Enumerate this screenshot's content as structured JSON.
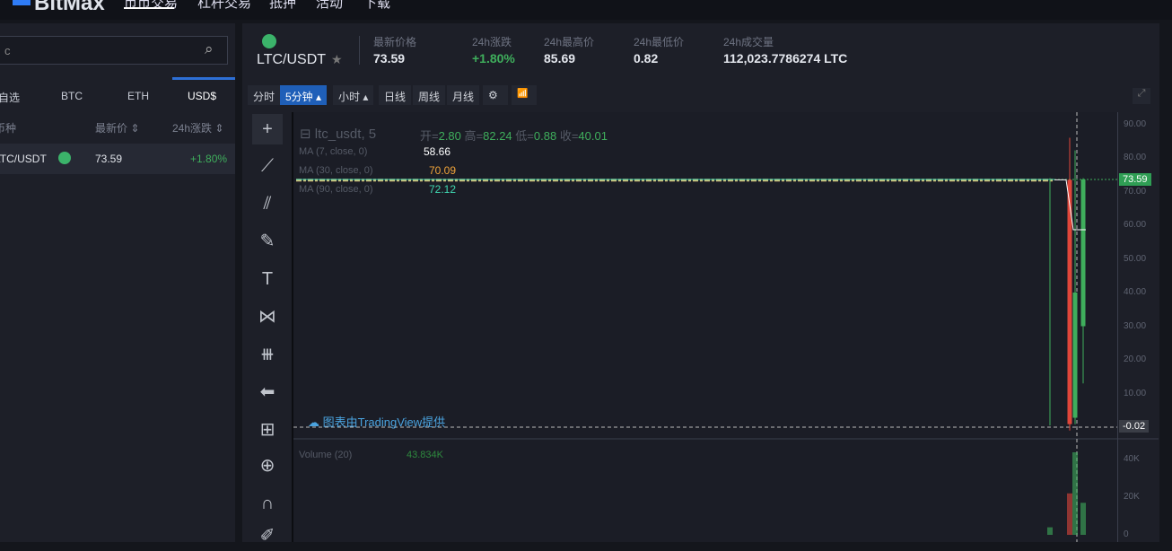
{
  "topbar": {
    "logo": "BitMax",
    "nav": [
      "币币交易",
      "杠杆交易",
      "抵押",
      "活动",
      "下载"
    ]
  },
  "sidebar": {
    "search_value": "c",
    "tabs": [
      "自选",
      "BTC",
      "ETH",
      "USD$"
    ],
    "active_tab": "USD$",
    "headers": [
      "币种",
      "最新价 ⇕",
      "24h涨跌 ⇕"
    ],
    "rows": [
      {
        "pair": "LTC/USDT",
        "price": "73.59",
        "change": "+1.80%"
      }
    ]
  },
  "ticker": {
    "pair": "LTC/USDT",
    "star": "★",
    "labels": [
      "最新价格",
      "24h涨跌",
      "24h最高价",
      "24h最低价",
      "24h成交量"
    ],
    "values": [
      "73.59",
      "+1.80%",
      "85.69",
      "0.82",
      "112,023.7786274 LTC"
    ]
  },
  "toolbar": {
    "buttons": [
      "分时",
      "5分钟 ▴",
      "小时 ▴",
      "日线",
      "周线",
      "月线",
      "⚙",
      "📶"
    ],
    "active": "5分钟 ▴"
  },
  "chart": {
    "symbol": "ltc_usdt, 5",
    "ohlc": [
      {
        "k": "开=",
        "v": "2.80"
      },
      {
        "k": "高=",
        "v": "82.24"
      },
      {
        "k": "低=",
        "v": "0.88"
      },
      {
        "k": "收=",
        "v": "40.01"
      }
    ],
    "ma": [
      {
        "label": "MA (7, close, 0)",
        "value": "58.66",
        "color": "#ffffff"
      },
      {
        "label": "MA (30, close, 0)",
        "value": "70.09",
        "color": "#f0a43a"
      },
      {
        "label": "MA (90, close, 0)",
        "value": "72.12",
        "color": "#3fd6b0"
      }
    ],
    "attribution": "图表由TradingView提供",
    "volume_label": "Volume (20)",
    "volume_value": "43.834K"
  },
  "chart_data": {
    "type": "candlestick",
    "price_ticks": [
      "90.00",
      "80.00",
      "70.00",
      "60.00",
      "50.00",
      "40.00",
      "30.00",
      "20.00",
      "10.00"
    ],
    "last_price": "73.59",
    "low_marker": "-0.02",
    "volume_ticks": [
      "40K",
      "20K",
      "0"
    ],
    "ylim": [
      -0.02,
      92
    ],
    "candles": [
      {
        "o": 73.5,
        "h": 74,
        "l": 0.5,
        "c": 73.4,
        "color": "up"
      },
      {
        "o": 73.5,
        "h": 86,
        "l": -1,
        "c": 0.9,
        "color": "down"
      },
      {
        "o": 2.8,
        "h": 82.24,
        "l": 0.88,
        "c": 40.01,
        "color": "up"
      },
      {
        "o": 30,
        "h": 74,
        "l": 13,
        "c": 73.59,
        "color": "up"
      }
    ],
    "volumes": [
      {
        "v": 4,
        "color": "up"
      },
      {
        "v": 22,
        "color": "down"
      },
      {
        "v": 43.8,
        "color": "up"
      },
      {
        "v": 17,
        "color": "up"
      }
    ],
    "colors": {
      "up": "#3fae5c",
      "down": "#e0463a"
    }
  }
}
